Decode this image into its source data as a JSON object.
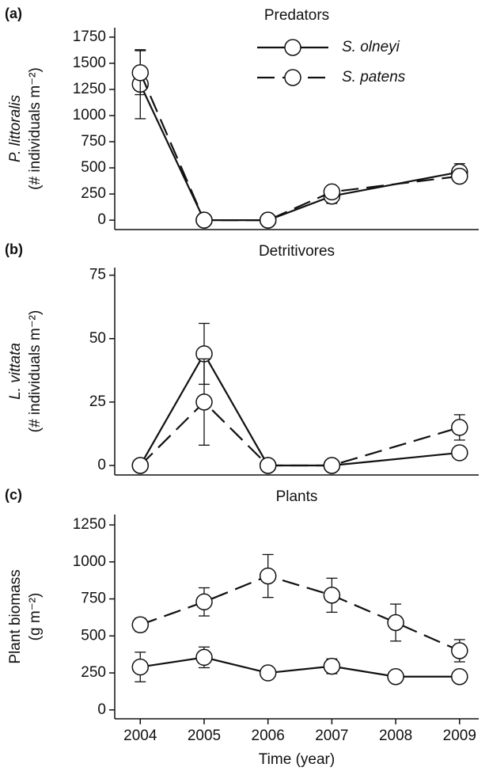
{
  "chart_data": [
    {
      "type": "line",
      "panel": "(a)",
      "title": "Predators",
      "ylabel": [
        "P. littoralis",
        "(# individuals m⁻²)"
      ],
      "x": [
        2004,
        2005,
        2006,
        2007,
        2009
      ],
      "xlim": [
        2003.6,
        2009.3
      ],
      "ylim": [
        -90,
        1840
      ],
      "yticks": [
        0,
        250,
        500,
        750,
        1000,
        1250,
        1500,
        1750
      ],
      "legend": "upper right",
      "series": [
        {
          "name": "S. olneyi",
          "color": "#111111",
          "dashed": false,
          "values": [
            1300,
            0,
            0,
            230,
            460
          ],
          "errors": [
            330,
            0,
            0,
            70,
            80
          ]
        },
        {
          "name": "S. patens",
          "color": "#111111",
          "dashed": true,
          "values": [
            1410,
            0,
            0,
            270,
            420
          ],
          "errors": [
            210,
            0,
            0,
            30,
            50
          ]
        }
      ]
    },
    {
      "type": "line",
      "panel": "(b)",
      "title": "Detritivores",
      "ylabel": [
        "L. vittata",
        "(# individuals m⁻²)"
      ],
      "x": [
        2004,
        2005,
        2006,
        2007,
        2009
      ],
      "xlim": [
        2003.6,
        2009.3
      ],
      "ylim": [
        -3.75,
        78
      ],
      "yticks": [
        0,
        25,
        50,
        75
      ],
      "series": [
        {
          "color": "#111111",
          "dashed": false,
          "values": [
            0,
            44,
            0,
            0,
            5
          ],
          "errors": [
            0,
            12,
            0,
            0,
            0
          ]
        },
        {
          "color": "#111111",
          "dashed": true,
          "values": [
            0,
            25,
            0,
            0,
            15
          ],
          "errors": [
            0,
            17,
            0,
            0,
            5
          ]
        }
      ]
    },
    {
      "type": "line",
      "panel": "(c)",
      "title": "Plants",
      "ylabel": [
        "Plant biomass",
        "(g m⁻²)"
      ],
      "xlabel": "Time (year)",
      "x": [
        2004,
        2005,
        2006,
        2007,
        2008,
        2009
      ],
      "xlim": [
        2003.6,
        2009.3
      ],
      "xticks": [
        2004,
        2005,
        2006,
        2007,
        2008,
        2009
      ],
      "ylim": [
        -60,
        1320
      ],
      "yticks": [
        0,
        250,
        500,
        750,
        1000,
        1250
      ],
      "series": [
        {
          "color": "#111111",
          "dashed": false,
          "values": [
            290,
            355,
            250,
            295,
            225,
            225
          ],
          "errors": [
            100,
            70,
            40,
            50,
            15,
            15
          ]
        },
        {
          "color": "#111111",
          "dashed": true,
          "values": [
            575,
            730,
            905,
            775,
            590,
            400
          ],
          "errors": [
            45,
            95,
            145,
            115,
            125,
            75
          ]
        }
      ]
    }
  ]
}
